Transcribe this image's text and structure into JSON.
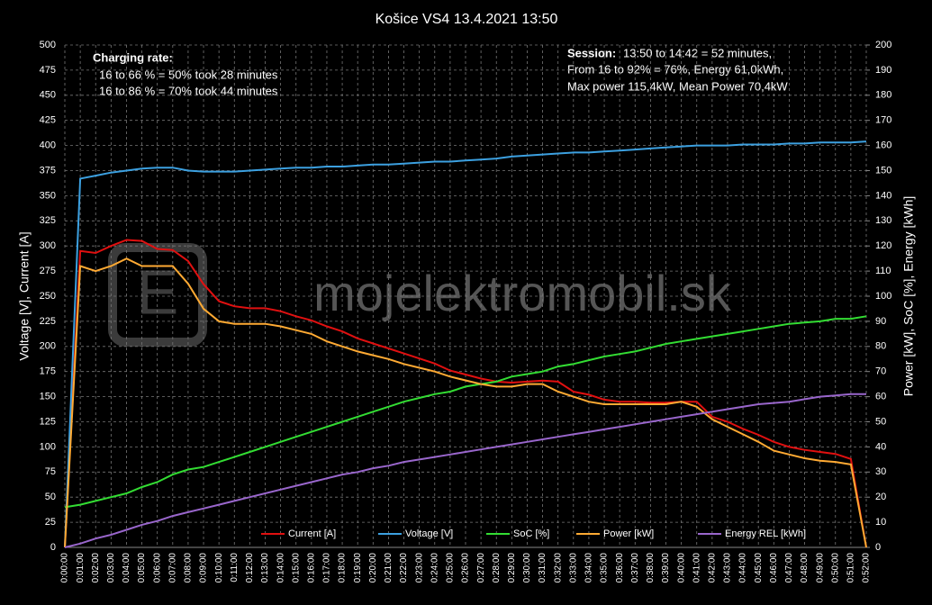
{
  "chart_data": {
    "type": "line",
    "title": "Košice VS4 13.4.2021 13:50",
    "ylabel": "Voltage [V], Current [A]",
    "y2label": "Power [kW], SoC [%], Energy [kWh]",
    "watermark": "mojelektromobil.sk",
    "annotations": {
      "charging": {
        "title": "Charging rate:",
        "lines": [
          "16 to 66 % = 50% took 28 minutes",
          "16 to 86 % = 70% took 44 minutes"
        ]
      },
      "session": {
        "title": "Session:",
        "lines": [
          "13:50 to 14:42 = 52 minutes,",
          "From 16 to 92% = 76%, Energy 61,0kWh,",
          "Max power 115,4kW, Mean Power  70,4kW"
        ]
      }
    },
    "categories": [
      "0:00:00",
      "0:01:00",
      "0:02:00",
      "0:03:00",
      "0:04:00",
      "0:05:00",
      "0:06:00",
      "0:07:00",
      "0:08:00",
      "0:09:00",
      "0:10:00",
      "0:11:00",
      "0:12:00",
      "0:13:00",
      "0:14:00",
      "0:15:00",
      "0:16:00",
      "0:17:00",
      "0:18:00",
      "0:19:00",
      "0:20:00",
      "0:21:00",
      "0:22:00",
      "0:23:00",
      "0:24:00",
      "0:25:00",
      "0:26:00",
      "0:27:00",
      "0:28:00",
      "0:29:00",
      "0:30:00",
      "0:31:00",
      "0:32:00",
      "0:33:00",
      "0:34:00",
      "0:35:00",
      "0:36:00",
      "0:37:00",
      "0:38:00",
      "0:39:00",
      "0:40:00",
      "0:41:00",
      "0:42:00",
      "0:43:00",
      "0:44:00",
      "0:45:00",
      "0:46:00",
      "0:47:00",
      "0:48:00",
      "0:49:00",
      "0:50:00",
      "0:51:00",
      "0:52:00"
    ],
    "series": [
      {
        "name": "Current [A]",
        "color": "#e01010",
        "values": [
          0,
          295,
          293,
          300,
          306,
          305,
          297,
          296,
          285,
          262,
          245,
          240,
          238,
          238,
          235,
          230,
          226,
          220,
          215,
          208,
          203,
          198,
          193,
          188,
          183,
          176,
          172,
          168,
          165,
          164,
          165,
          166,
          165,
          155,
          152,
          147,
          145,
          145,
          144,
          144,
          145,
          145,
          130,
          125,
          118,
          112,
          105,
          100,
          97,
          95,
          93,
          88,
          0
        ]
      },
      {
        "name": "Voltage [V]",
        "color": "#3ca0e0",
        "values": [
          0,
          367,
          370,
          373,
          375,
          377,
          378,
          378,
          375,
          374,
          374,
          374,
          375,
          376,
          377,
          378,
          378,
          379,
          379,
          380,
          381,
          381,
          382,
          383,
          384,
          384,
          385,
          386,
          387,
          389,
          390,
          391,
          392,
          393,
          393,
          394,
          395,
          396,
          397,
          398,
          399,
          400,
          400,
          400,
          401,
          401,
          401,
          402,
          402,
          403,
          403,
          403,
          404
        ]
      },
      {
        "name": "SoC [%]",
        "color": "#33dd33",
        "axis": "y2",
        "values": [
          16,
          17,
          18.5,
          20,
          21.5,
          24,
          26,
          29,
          31,
          32,
          34,
          36,
          38,
          40,
          42,
          44,
          46,
          48,
          50,
          52,
          54,
          56,
          58,
          59.5,
          61,
          62,
          64,
          65,
          66,
          68,
          69,
          70,
          72,
          73,
          74.5,
          76,
          77,
          78,
          79.5,
          81,
          82,
          83,
          84,
          85,
          86,
          87,
          88,
          89,
          89.5,
          90,
          91,
          91,
          92
        ]
      },
      {
        "name": "Power [kW]",
        "color": "#ffaa33",
        "axis": "y2",
        "values": [
          0,
          112,
          110,
          112,
          115,
          112,
          112,
          112,
          105,
          95,
          90,
          89,
          89,
          89,
          88,
          86.5,
          85,
          82,
          80,
          78,
          76.5,
          75,
          73,
          71.5,
          70,
          68,
          66.5,
          65,
          64,
          64,
          65,
          65,
          62,
          60,
          58,
          57,
          57,
          57,
          57,
          57,
          58,
          56,
          51,
          48,
          45,
          42,
          38.5,
          37,
          35.5,
          34.5,
          34,
          33,
          0
        ]
      },
      {
        "name": "Energy REL [kWh]",
        "color": "#9966cc",
        "axis": "y2",
        "values": [
          0,
          1.5,
          3.5,
          5,
          7,
          9,
          10.5,
          12.5,
          14,
          15.5,
          17,
          18.5,
          20,
          21.5,
          23,
          24.5,
          26,
          27.5,
          29,
          30,
          31.5,
          32.5,
          34,
          35,
          36,
          37,
          38,
          39,
          40,
          41,
          42,
          43,
          44,
          45,
          46,
          47,
          48,
          49,
          50,
          51,
          52,
          53,
          54,
          55,
          56,
          57,
          57.5,
          58,
          59,
          60,
          60.5,
          61,
          61
        ]
      }
    ],
    "ylim": [
      0,
      500
    ],
    "yticks": [
      0,
      25,
      50,
      75,
      100,
      125,
      150,
      175,
      200,
      225,
      250,
      275,
      300,
      325,
      350,
      375,
      400,
      425,
      450,
      475,
      500
    ],
    "y2lim": [
      0,
      200
    ],
    "y2ticks": [
      0,
      10,
      20,
      30,
      40,
      50,
      60,
      70,
      80,
      90,
      100,
      110,
      120,
      130,
      140,
      150,
      160,
      170,
      180,
      190,
      200
    ],
    "grid": true,
    "legend": "bottom"
  }
}
